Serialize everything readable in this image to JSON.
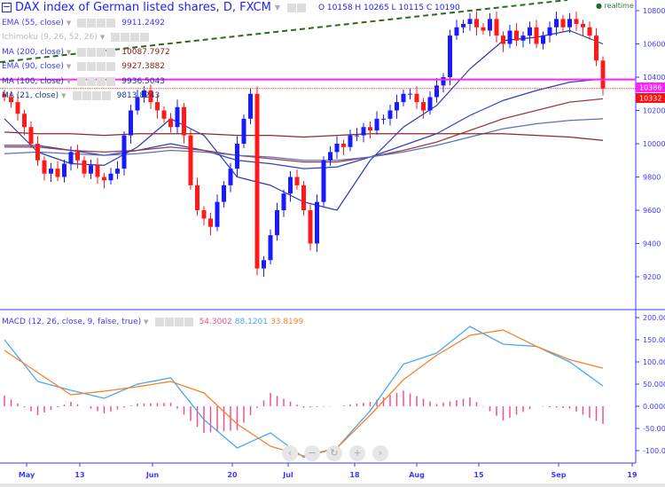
{
  "header": {
    "title": "DAX index of German listed shares, D, FXCM",
    "ohlc": "O 10158 H 10265 L 10115 C 10190",
    "realtime": "realtime"
  },
  "legend": [
    {
      "label": "EMA (55, close)",
      "value": "9911.2492",
      "color": "#3a3aff"
    },
    {
      "label": "Ichimoku (9, 26, 52, 26)",
      "value": "",
      "color": "#bbbbbb"
    },
    {
      "label": "MA (200, close)",
      "value": "10087.7972",
      "color": "#8b1a1a"
    },
    {
      "label": "EMA (90, close)",
      "value": "9927.3882",
      "color": "#8b1a1a"
    },
    {
      "label": "MA (100, close)",
      "value": "9936.5043",
      "color": "#1a3a9a"
    },
    {
      "label": "MA (21, close)",
      "value": "9813.8243",
      "color": "#1a3a9a"
    }
  ],
  "macd_legend": {
    "label": "MACD (12, 26, close, 9, false, true)",
    "hist": "54.3002",
    "macd": "88.1201",
    "signal": "33.8199"
  },
  "colors": {
    "up": "#1a1aff",
    "down": "#ff1a1a",
    "macd": "#4aa8f0",
    "signal": "#f5822a",
    "hist": "#f0508a",
    "axis": "#3a3aff",
    "hline": "#ff22ff",
    "trend": "#2d6a1e"
  },
  "chart_data": [
    {
      "type": "candlestick",
      "ylim": [
        9100,
        10850
      ],
      "yticks": [
        9200,
        9400,
        9600,
        9800,
        10000,
        10200,
        10400,
        10600,
        10800
      ],
      "xticks": [
        "May",
        "13",
        "Jun",
        "20",
        "Jul",
        "18",
        "Aug",
        "15",
        "Sep",
        "19"
      ],
      "close": [
        10280,
        10250,
        10180,
        10100,
        10000,
        9900,
        9820,
        9850,
        9800,
        9880,
        9950,
        9900,
        9820,
        9870,
        9800,
        9780,
        9820,
        9850,
        10050,
        10200,
        10280,
        10320,
        10250,
        10200,
        10150,
        10100,
        10220,
        10050,
        9750,
        9600,
        9550,
        9500,
        9650,
        9750,
        9850,
        10000,
        10150,
        10300,
        9250,
        9300,
        9450,
        9600,
        9700,
        9800,
        9750,
        9600,
        9400,
        9650,
        9900,
        9950,
        10000,
        9980,
        10050,
        10050,
        10100,
        10080,
        10150,
        10150,
        10200,
        10250,
        10300,
        10300,
        10250,
        10200,
        10280,
        10350,
        10400,
        10650,
        10700,
        10720,
        10750,
        10700,
        10680,
        10750,
        10650,
        10600,
        10680,
        10620,
        10650,
        10700,
        10600,
        10650,
        10700,
        10750,
        10700,
        10750,
        10720,
        10700,
        10650,
        10500,
        10332
      ],
      "lines_every_5": {
        "MA (21, close)": [
          10150,
          9950,
          9880,
          9870,
          9980,
          10150,
          10050,
          9800,
          9750,
          9650,
          9600,
          9900,
          10100,
          10230,
          10450,
          10620,
          10640,
          10680,
          10600
        ],
        "EMA (55, close)": [
          9990,
          9990,
          9960,
          9930,
          9960,
          10000,
          9960,
          9900,
          9880,
          9850,
          9860,
          9920,
          9990,
          10060,
          10170,
          10260,
          10320,
          10370,
          10390
        ],
        "EMA (90, close)": [
          9980,
          9980,
          9960,
          9950,
          9960,
          9980,
          9960,
          9930,
          9910,
          9890,
          9890,
          9920,
          9960,
          10010,
          10080,
          10150,
          10200,
          10250,
          10270
        ],
        "MA (100, close)": [
          9940,
          9950,
          9940,
          9930,
          9940,
          9960,
          9950,
          9930,
          9920,
          9900,
          9900,
          9920,
          9950,
          9990,
          10040,
          10090,
          10120,
          10140,
          10150
        ],
        "MA (200, close)": [
          10070,
          10060,
          10060,
          10050,
          10060,
          10060,
          10060,
          10050,
          10050,
          10040,
          10050,
          10060,
          10060,
          10060,
          10060,
          10060,
          10050,
          10040,
          10020
        ]
      },
      "hlines": [
        "10386",
        "10332"
      ]
    },
    {
      "type": "macd",
      "ylim": [
        -130,
        210
      ],
      "yticks": [
        "200.0000",
        "150.0000",
        "100.0000",
        "50.0000",
        "0.0000",
        "-50.0000",
        "-100.0000"
      ],
      "macd_every_5": [
        150,
        56,
        36,
        18,
        50,
        64,
        -30,
        -94,
        -60,
        -115,
        -94,
        -10,
        95,
        120,
        180,
        140,
        135,
        100,
        46
      ],
      "signal_every_5": [
        126,
        76,
        26,
        34,
        44,
        56,
        30,
        -40,
        -90,
        -112,
        -94,
        -20,
        60,
        115,
        160,
        172,
        135,
        105,
        86
      ]
    }
  ]
}
